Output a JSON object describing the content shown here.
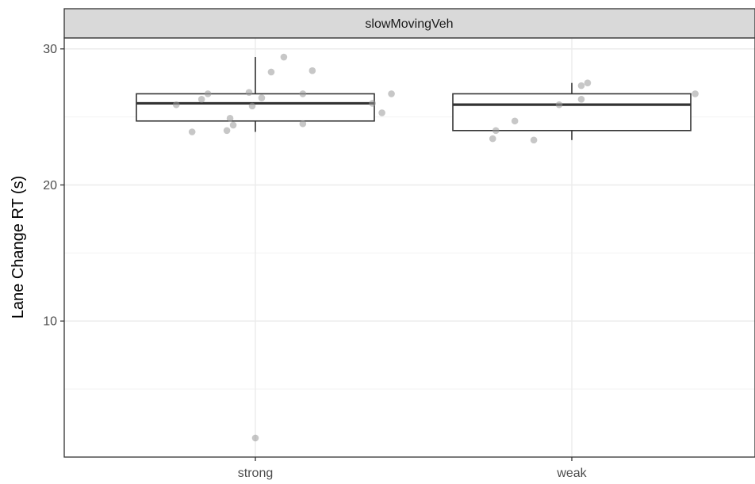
{
  "chart_data": {
    "type": "box",
    "facet_label": "slowMovingVeh",
    "ylabel": "Lane Change RT (s)",
    "xlabel": "",
    "ylim": [
      0,
      30.8
    ],
    "yticks": [
      10,
      20,
      30
    ],
    "minor_yticks": [
      5,
      15,
      25
    ],
    "grid": true,
    "categories": [
      "strong",
      "weak"
    ],
    "boxes": [
      {
        "category": "strong",
        "whisker_low": 23.9,
        "q1": 24.7,
        "median": 26.0,
        "q3": 26.7,
        "whisker_high": 29.4,
        "points": [
          {
            "x": 1,
            "y": 1.4
          },
          {
            "x": 0.8,
            "y": 23.9
          },
          {
            "x": 0.91,
            "y": 24.0
          },
          {
            "x": 0.93,
            "y": 24.4
          },
          {
            "x": 1.15,
            "y": 24.5
          },
          {
            "x": 0.92,
            "y": 24.9
          },
          {
            "x": 1.4,
            "y": 25.3
          },
          {
            "x": 0.75,
            "y": 25.9
          },
          {
            "x": 0.99,
            "y": 25.8
          },
          {
            "x": 1.37,
            "y": 26.0
          },
          {
            "x": 0.83,
            "y": 26.3
          },
          {
            "x": 1.02,
            "y": 26.4
          },
          {
            "x": 0.85,
            "y": 26.7
          },
          {
            "x": 0.98,
            "y": 26.8
          },
          {
            "x": 1.15,
            "y": 26.7
          },
          {
            "x": 1.43,
            "y": 26.7
          },
          {
            "x": 1.05,
            "y": 28.3
          },
          {
            "x": 1.18,
            "y": 28.4
          },
          {
            "x": 1.09,
            "y": 29.4
          }
        ]
      },
      {
        "category": "weak",
        "whisker_low": 23.3,
        "q1": 24.0,
        "median": 25.9,
        "q3": 26.7,
        "whisker_high": 27.5,
        "points": [
          {
            "x": 1.75,
            "y": 23.4
          },
          {
            "x": 1.88,
            "y": 23.3
          },
          {
            "x": 1.76,
            "y": 24.0
          },
          {
            "x": 1.82,
            "y": 24.7
          },
          {
            "x": 1.96,
            "y": 25.9
          },
          {
            "x": 2.03,
            "y": 26.3
          },
          {
            "x": 2.39,
            "y": 26.7
          },
          {
            "x": 2.03,
            "y": 27.3
          },
          {
            "x": 2.05,
            "y": 27.5
          }
        ]
      }
    ],
    "colors": {
      "box_stroke": "#333333",
      "point_fill": "#999999",
      "grid": "#ebebeb",
      "strip_bg": "#d9d9d9",
      "panel_border": "#333333"
    }
  }
}
